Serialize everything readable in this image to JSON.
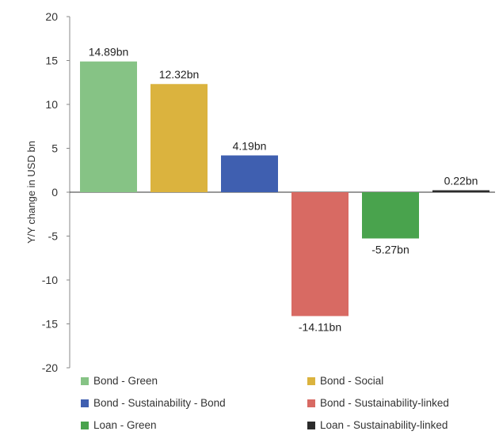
{
  "chart_data": {
    "type": "bar",
    "ylabel": "Y/Y change in USD bn",
    "ylim": [
      -20,
      20
    ],
    "yticks": [
      20,
      15,
      10,
      5,
      0,
      -5,
      -10,
      -15,
      -20
    ],
    "grid": false,
    "legend_position": "bottom",
    "categories": [
      "Bond - Green",
      "Bond - Social",
      "Bond - Sustainability - Bond",
      "Bond - Sustainability-linked",
      "Loan - Green",
      "Loan - Sustainability-linked"
    ],
    "values": [
      14.89,
      12.32,
      4.19,
      -14.11,
      -5.27,
      0.22
    ],
    "data_labels": [
      "14.89bn",
      "12.32bn",
      "4.19bn",
      "-14.11bn",
      "-5.27bn",
      "0.22bn"
    ],
    "colors": [
      "#86c385",
      "#dbb33e",
      "#3f5fb0",
      "#d86a63",
      "#49a34d",
      "#2b2b2b"
    ]
  }
}
